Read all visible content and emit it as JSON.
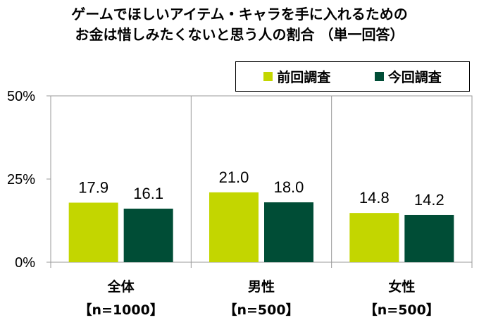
{
  "chart_data": {
    "type": "bar",
    "title_lines": [
      "ゲームでほしいアイテム・キャラを手に入れるための",
      "お金は惜しみたくないと思う人の割合 （単一回答）"
    ],
    "categories": [
      {
        "name": "全体",
        "sample": "【n=1000】"
      },
      {
        "name": "男性",
        "sample": "【n=500】"
      },
      {
        "name": "女性",
        "sample": "【n=500】"
      }
    ],
    "series": [
      {
        "name": "前回調査",
        "color": "#c3d600",
        "values": [
          17.9,
          21.0,
          14.8
        ]
      },
      {
        "name": "今回調査",
        "color": "#004d36",
        "values": [
          16.1,
          18.0,
          14.2
        ]
      }
    ],
    "yticks": [
      "0%",
      "25%",
      "50%"
    ],
    "ylim": [
      0,
      50
    ],
    "legend_position": "top-right",
    "grid": false
  }
}
